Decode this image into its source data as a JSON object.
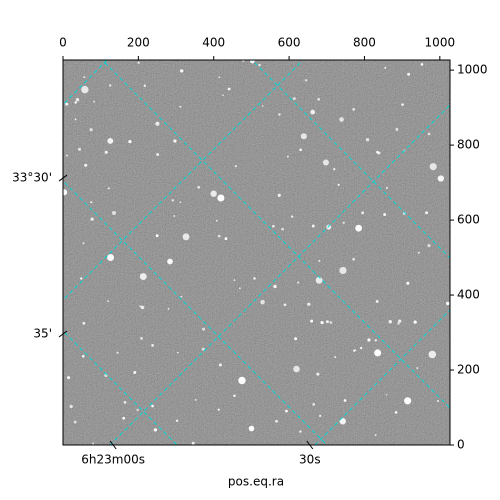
{
  "chart_data": {
    "type": "image",
    "xlabel": "pos.eq.ra",
    "xlim": [
      0,
      1027
    ],
    "xticks": [
      0,
      200,
      400,
      600,
      800,
      1000
    ],
    "ylim": [
      0,
      1027
    ],
    "yticks": [
      0,
      200,
      400,
      600,
      800,
      1000
    ],
    "bottom_ticks": [
      {
        "value": 133,
        "label": "6h23m00s"
      },
      {
        "value": 655,
        "label": "30s"
      }
    ],
    "left_ticks": [
      {
        "value": 712,
        "label": "33°30'"
      },
      {
        "value": 296,
        "label": "35'"
      }
    ],
    "grid_color": "#00d8d8"
  }
}
